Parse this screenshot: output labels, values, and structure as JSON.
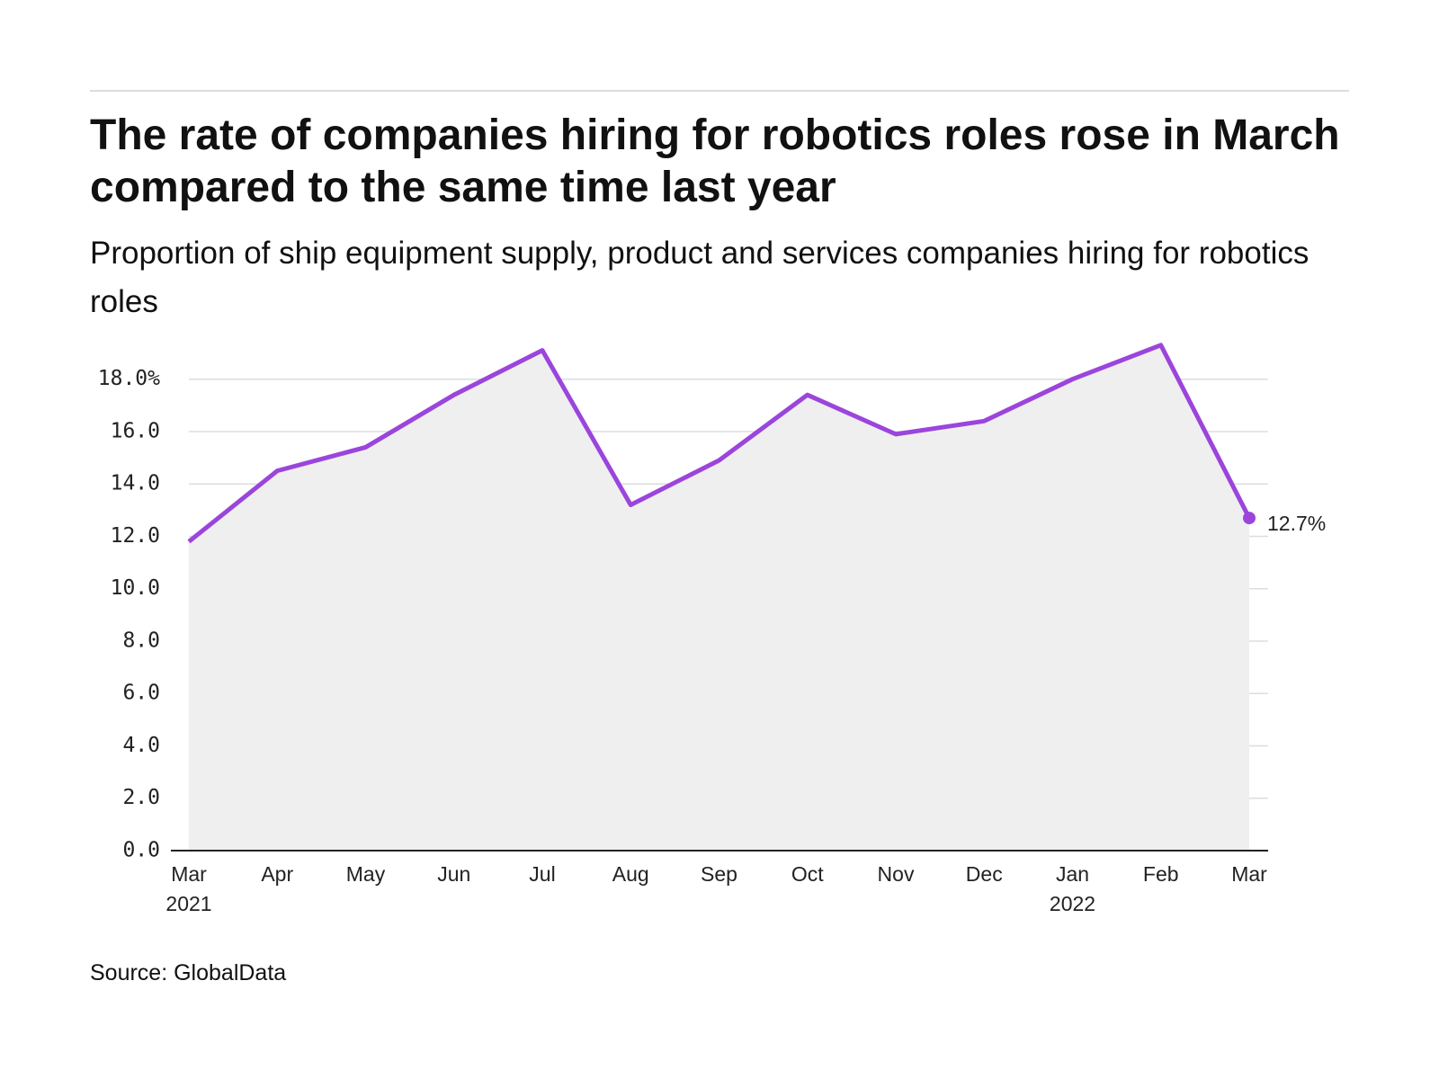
{
  "chart_data": {
    "type": "line",
    "title": "The rate of companies hiring for robotics roles rose in March compared to the same time last year",
    "subtitle": "Proportion of ship equipment supply, product and services companies hiring for robotics roles",
    "source": "Source: GlobalData",
    "categories": [
      "Mar 2021",
      "Apr",
      "May",
      "Jun",
      "Jul",
      "Aug",
      "Sep",
      "Oct",
      "Nov",
      "Dec",
      "Jan 2022",
      "Feb",
      "Mar"
    ],
    "values": [
      11.8,
      14.5,
      15.4,
      17.4,
      19.1,
      13.2,
      14.9,
      17.4,
      15.9,
      16.4,
      18.0,
      19.3,
      12.7
    ],
    "value_labels": [
      null,
      null,
      null,
      null,
      null,
      null,
      null,
      null,
      null,
      null,
      null,
      null,
      "12.7%"
    ],
    "color": "#9b45dc",
    "area_color": "#efefef",
    "ylim": [
      0,
      19.5
    ],
    "yticks": [
      {
        "value": 0,
        "label": "0.0"
      },
      {
        "value": 2,
        "label": "2.0"
      },
      {
        "value": 4,
        "label": "4.0"
      },
      {
        "value": 6,
        "label": "6.0"
      },
      {
        "value": 8,
        "label": "8.0"
      },
      {
        "value": 10,
        "label": "10.0"
      },
      {
        "value": 12,
        "label": "12.0"
      },
      {
        "value": 14,
        "label": "14.0"
      },
      {
        "value": 16,
        "label": "16.0"
      },
      {
        "value": 18,
        "label": "18.0%"
      }
    ],
    "grid": true
  }
}
